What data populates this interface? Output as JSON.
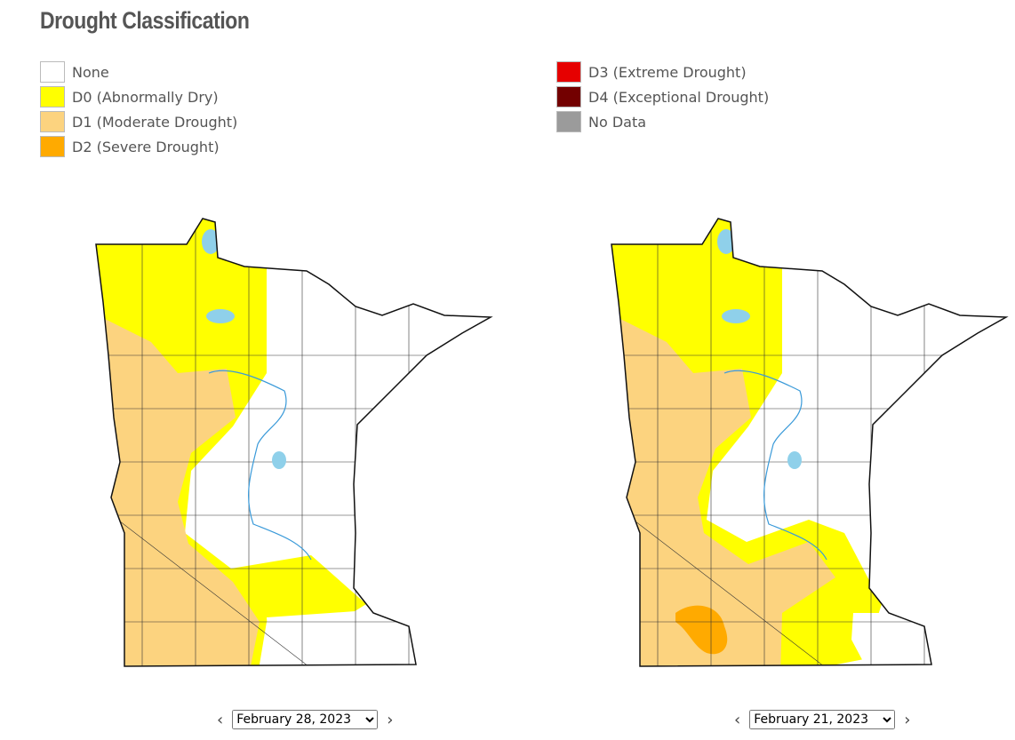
{
  "header": {
    "title": "Drought Classification"
  },
  "legend": {
    "items": [
      {
        "label": "None",
        "color": "#ffffff"
      },
      {
        "label": "D0 (Abnormally Dry)",
        "color": "#ffff00"
      },
      {
        "label": "D1 (Moderate Drought)",
        "color": "#fcd37f"
      },
      {
        "label": "D2 (Severe Drought)",
        "color": "#ffaa00"
      },
      {
        "label": "D3 (Extreme Drought)",
        "color": "#e60000"
      },
      {
        "label": "D4 (Exceptional Drought)",
        "color": "#730000"
      },
      {
        "label": "No Data",
        "color": "#9b9b9b"
      }
    ]
  },
  "maps": [
    {
      "date": "February 28, 2023"
    },
    {
      "date": "February 21, 2023"
    }
  ]
}
